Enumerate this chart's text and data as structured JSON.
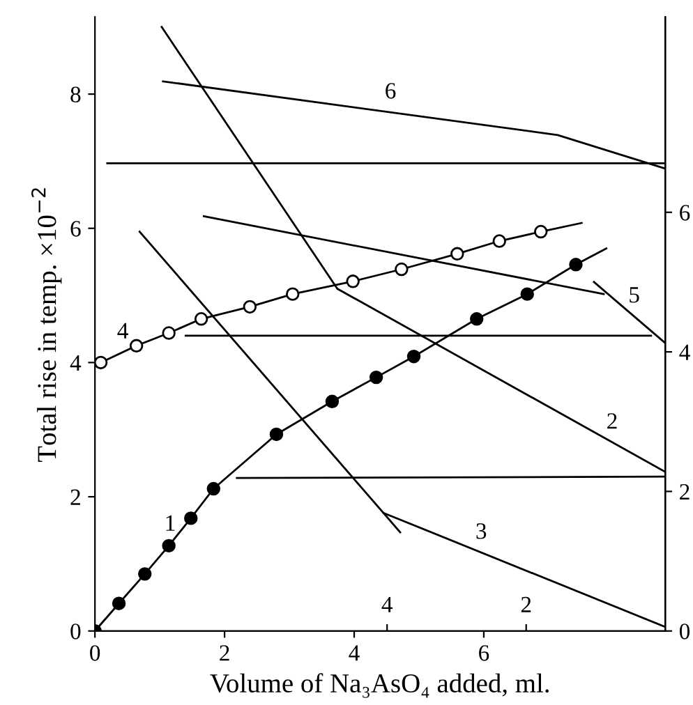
{
  "chart_data": {
    "type": "line",
    "xlabel": "Volume of Na₃AsO₄ added, ml.",
    "ylabel": "Total rise in temp. ×10$^{−2}$",
    "xlim": [
      0,
      8.8
    ],
    "ylim": [
      0,
      9.15
    ],
    "xticks": [
      0,
      2,
      4,
      6
    ],
    "yticks": [
      0,
      2,
      4,
      6,
      8
    ],
    "y2lim": [
      0,
      8.8
    ],
    "y2ticks": [
      0,
      2,
      4,
      6
    ],
    "x2lim": [
      8.2,
      0
    ],
    "x2ticks": [
      4,
      2
    ],
    "grid": false,
    "legend": false,
    "series": [
      {
        "color": "#000000",
        "x": [
          0,
          0.37,
          0.77,
          1.14,
          1.48,
          1.83,
          2.8,
          3.66,
          4.34,
          4.92,
          5.89,
          6.67,
          7.42,
          7.89
        ],
        "values": [
          0,
          0.41,
          0.85,
          1.27,
          1.68,
          2.12,
          2.93,
          3.42,
          3.78,
          4.09,
          4.65,
          5.02,
          5.46,
          5.7
        ]
      },
      {
        "type": "scatter",
        "marker": "circle",
        "color": "#000000",
        "x": [
          0,
          0.37,
          0.77,
          1.14,
          1.48,
          1.83,
          2.8,
          3.66,
          4.34,
          4.92,
          5.89,
          6.67,
          7.42
        ],
        "values": [
          0,
          0.41,
          0.85,
          1.27,
          1.68,
          2.12,
          2.93,
          3.42,
          3.78,
          4.09,
          4.65,
          5.02,
          5.46
        ]
      },
      {
        "color": "#000000",
        "x": [
          0.09,
          0.64,
          1.14,
          1.64,
          2.39,
          3.05,
          3.98,
          4.73,
          5.59,
          6.24,
          6.88,
          7.51
        ],
        "values": [
          4.0,
          4.25,
          4.44,
          4.65,
          4.83,
          5.02,
          5.21,
          5.39,
          5.62,
          5.81,
          5.95,
          6.08
        ]
      },
      {
        "type": "scatter",
        "marker": "circle",
        "color": "#ffffff",
        "x": [
          0.09,
          0.64,
          1.14,
          1.64,
          2.39,
          3.05,
          3.98,
          4.73,
          5.59,
          6.24,
          6.88
        ],
        "values": [
          4.0,
          4.25,
          4.44,
          4.65,
          4.83,
          5.02,
          5.21,
          5.39,
          5.62,
          5.81,
          5.95
        ]
      },
      {
        "color": "#000000",
        "x": [
          1.03,
          3.74,
          8.8
        ],
        "values": [
          9.0,
          5.1,
          2.37
        ]
      },
      {
        "color": "#000000",
        "x": [
          0.69,
          4.45,
          8.8
        ],
        "values": [
          5.95,
          1.76,
          0.06
        ]
      },
      {
        "color": "#000000",
        "x": [
          4.45,
          4.71
        ],
        "values": [
          1.76,
          1.47
        ]
      },
      {
        "color": "#000000",
        "x": [
          1.68,
          7.85
        ],
        "values": [
          6.18,
          5.02
        ]
      },
      {
        "color": "#000000",
        "x": [
          7.7,
          8.8
        ],
        "values": [
          5.2,
          4.29
        ]
      },
      {
        "color": "#000000",
        "x": [
          1.05,
          7.14,
          8.8
        ],
        "values": [
          8.19,
          7.39,
          6.89
        ]
      },
      {
        "color": "#000000",
        "x": [
          0.19,
          8.8
        ],
        "values": [
          6.97,
          6.97
        ]
      },
      {
        "color": "#000000",
        "x": [
          1.4,
          8.58
        ],
        "values": [
          4.4,
          4.4
        ]
      },
      {
        "color": "#000000",
        "x": [
          2.19,
          8.8
        ],
        "values": [
          2.28,
          2.3
        ]
      }
    ],
    "annotations": [
      {
        "text": "1",
        "x": 1.16,
        "y": 1.29
      },
      {
        "text": "2",
        "x": 7.98,
        "y": 2.81
      },
      {
        "text": "3",
        "x": 5.96,
        "y": 1.17
      },
      {
        "text": "4",
        "x": 0.43,
        "y": 4.155
      },
      {
        "text": "5",
        "x": 8.32,
        "y": 4.69
      },
      {
        "text": "6",
        "x": 4.56,
        "y": 7.73
      }
    ]
  }
}
